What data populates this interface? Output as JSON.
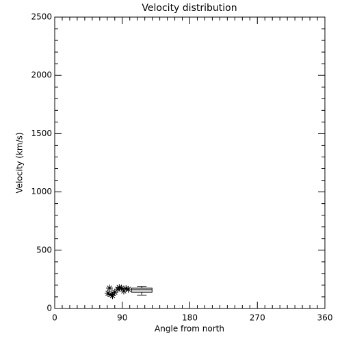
{
  "chart_data": {
    "type": "scatter",
    "title": "Velocity distribution",
    "x_label": "Angle from north",
    "y_label": "Velocity (km/s)",
    "xlim": [
      0,
      360
    ],
    "xticks": [
      0,
      90,
      180,
      270,
      360
    ],
    "ylim": [
      0,
      2500
    ],
    "yticks": [
      0,
      500,
      1000,
      1500,
      2000,
      2500
    ],
    "color": "#000000",
    "x": [
      71,
      73,
      75,
      77,
      80,
      84,
      86,
      89,
      92,
      95,
      98
    ],
    "values": [
      130,
      175,
      120,
      110,
      140,
      165,
      180,
      175,
      150,
      170,
      165
    ],
    "box": {
      "x": 116,
      "min": 115,
      "q1": 140,
      "median": 160,
      "q3": 175,
      "max": 190
    }
  }
}
